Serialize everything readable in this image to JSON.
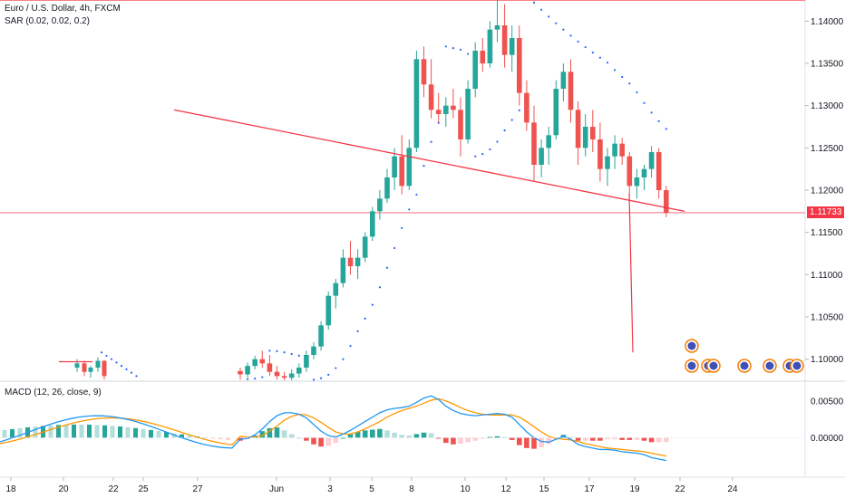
{
  "header": {
    "symbol_title": "Euro / U.S. Dollar, 4h, FXCM",
    "indicator_sar": "SAR (0.02, 0.02, 0.2)",
    "indicator_macd": "MACD (12, 26, close, 9)"
  },
  "current_price_label": "1.11733",
  "colors": {
    "up": "#26a69a",
    "down": "#ef5350",
    "sar": "#2962ff",
    "macd": "#2196f3",
    "signal": "#ff9800",
    "hist_up_strong": "#26a69a",
    "hist_up_weak": "#b2dfdb",
    "hist_down_strong": "#ef5350",
    "hist_down_weak": "#ffcdd2",
    "trendline": "#f23645"
  },
  "chart_data": [
    {
      "type": "candlestick",
      "title": "Euro / U.S. Dollar, 4h, FXCM",
      "x_tick_labels": [
        "18",
        "20",
        "22",
        "25",
        "27",
        "Jun",
        "3",
        "5",
        "8",
        "10",
        "12",
        "15",
        "17",
        "19",
        "22",
        "24"
      ],
      "y_tick_labels": [
        "1.14000",
        "1.13500",
        "1.13000",
        "1.12500",
        "1.12000",
        "1.11500",
        "1.11000",
        "1.10500",
        "1.10000"
      ],
      "ylim": [
        1.0975,
        1.1425
      ],
      "last_price": 1.11733,
      "key_levels": [
        1.11733,
        1.1425
      ],
      "neckline": {
        "from": [
          2,
          1.1295
        ],
        "to": [
          39,
          1.1175
        ]
      },
      "projection_line": {
        "x": 36,
        "from": 1.1196,
        "to": 1.1008
      },
      "sar": {
        "label": "SAR (0.02, 0.02, 0.2)"
      },
      "candles": [
        [
          1.0986,
          1.099,
          1.0976,
          1.0982
        ],
        [
          1.0982,
          1.0996,
          1.0978,
          1.0992
        ],
        [
          1.0992,
          1.1004,
          1.0988,
          1.1
        ],
        [
          1.1,
          1.101,
          1.099,
          1.0995
        ],
        [
          1.0995,
          1.1005,
          1.098,
          1.0985
        ],
        [
          1.0985,
          1.0992,
          1.0976,
          1.098
        ],
        [
          1.098,
          1.0985,
          1.0975,
          1.0978
        ],
        [
          1.0978,
          1.0988,
          1.0975,
          1.0983
        ],
        [
          1.0983,
          1.0995,
          1.0978,
          1.099
        ],
        [
          1.099,
          1.101,
          1.0985,
          1.1005
        ],
        [
          1.1005,
          1.102,
          1.1,
          1.1015
        ],
        [
          1.1015,
          1.1045,
          1.101,
          1.104
        ],
        [
          1.104,
          1.108,
          1.1035,
          1.1075
        ],
        [
          1.1075,
          1.1095,
          1.106,
          1.109
        ],
        [
          1.109,
          1.113,
          1.1085,
          1.112
        ],
        [
          1.112,
          1.114,
          1.11,
          1.111
        ],
        [
          1.111,
          1.113,
          1.1095,
          1.112
        ],
        [
          1.112,
          1.115,
          1.1115,
          1.1145
        ],
        [
          1.1145,
          1.118,
          1.114,
          1.1175
        ],
        [
          1.1175,
          1.12,
          1.1165,
          1.119
        ],
        [
          1.119,
          1.1225,
          1.1185,
          1.1215
        ],
        [
          1.1215,
          1.125,
          1.12,
          1.124
        ],
        [
          1.124,
          1.1265,
          1.1195,
          1.1205
        ],
        [
          1.1205,
          1.126,
          1.12,
          1.125
        ],
        [
          1.125,
          1.1365,
          1.1245,
          1.1355
        ],
        [
          1.1355,
          1.137,
          1.131,
          1.1325
        ],
        [
          1.1325,
          1.1355,
          1.1285,
          1.1295
        ],
        [
          1.1295,
          1.1315,
          1.128,
          1.129
        ],
        [
          1.129,
          1.131,
          1.1275,
          1.13
        ],
        [
          1.13,
          1.132,
          1.1285,
          1.1295
        ],
        [
          1.1295,
          1.131,
          1.124,
          1.126
        ],
        [
          1.126,
          1.133,
          1.1255,
          1.132
        ],
        [
          1.132,
          1.1375,
          1.131,
          1.1365
        ],
        [
          1.1365,
          1.138,
          1.134,
          1.135
        ],
        [
          1.135,
          1.14,
          1.1345,
          1.139
        ],
        [
          1.139,
          1.1425,
          1.1375,
          1.1395
        ],
        [
          1.1395,
          1.142,
          1.1345,
          1.136
        ],
        [
          1.136,
          1.1395,
          1.134,
          1.138
        ],
        [
          1.138,
          1.1395,
          1.13,
          1.1315
        ],
        [
          1.1315,
          1.133,
          1.127,
          1.128
        ],
        [
          1.128,
          1.13,
          1.121,
          1.123
        ],
        [
          1.123,
          1.126,
          1.1215,
          1.125
        ],
        [
          1.125,
          1.1275,
          1.123,
          1.1265
        ],
        [
          1.1265,
          1.133,
          1.126,
          1.132
        ],
        [
          1.132,
          1.135,
          1.1305,
          1.134
        ],
        [
          1.134,
          1.1355,
          1.128,
          1.1295
        ],
        [
          1.1295,
          1.1305,
          1.123,
          1.125
        ],
        [
          1.125,
          1.129,
          1.124,
          1.1275
        ],
        [
          1.1275,
          1.1295,
          1.1245,
          1.126
        ],
        [
          1.126,
          1.128,
          1.121,
          1.1225
        ],
        [
          1.1225,
          1.125,
          1.1205,
          1.124
        ],
        [
          1.124,
          1.1265,
          1.1225,
          1.1255
        ],
        [
          1.1255,
          1.1262,
          1.123,
          1.124
        ],
        [
          1.124,
          1.1245,
          1.1195,
          1.1205
        ],
        [
          1.1205,
          1.1225,
          1.119,
          1.1215
        ],
        [
          1.1215,
          1.123,
          1.12,
          1.1225
        ],
        [
          1.1225,
          1.1252,
          1.1215,
          1.1245
        ],
        [
          1.1245,
          1.125,
          1.119,
          1.12
        ],
        [
          1.12,
          1.1205,
          1.1168,
          1.1173
        ]
      ]
    },
    {
      "type": "bar",
      "title": "MACD (12, 26, close, 9)",
      "y_tick_labels": [
        "0.00500",
        "0.00000"
      ],
      "ylim": [
        -0.0045,
        0.0072
      ],
      "macd_line": [
        -0.0002,
        -0.0001,
        0.0004,
        0.0012,
        0.0022,
        0.003,
        0.0034,
        0.0034,
        0.0032,
        0.0027,
        0.0018,
        0.0009,
        0.0003,
        0.0001,
        0.0005,
        0.001,
        0.0016,
        0.0022,
        0.0028,
        0.0034,
        0.0038,
        0.004,
        0.0041,
        0.0043,
        0.0048,
        0.0054,
        0.0057,
        0.0052,
        0.0043,
        0.0037,
        0.0033,
        0.0031,
        0.003,
        0.0031,
        0.0032,
        0.0033,
        0.0032,
        0.0028,
        0.0018,
        0.0008,
        0.0,
        -0.0005,
        -0.0006,
        -0.0002,
        0.0002,
        -0.0002,
        -0.0009,
        -0.0012,
        -0.0014,
        -0.0016,
        -0.0016,
        -0.0017,
        -0.0019,
        -0.002,
        -0.0021,
        -0.0023,
        -0.0027,
        -0.0029,
        -0.0031
      ],
      "signal_line": [
        0.0002,
        0.0001,
        0.0001,
        0.0003,
        0.0009,
        0.0016,
        0.0024,
        0.0029,
        0.0032,
        0.0031,
        0.0027,
        0.0021,
        0.0014,
        0.0008,
        0.0005,
        0.0005,
        0.0008,
        0.0012,
        0.0017,
        0.0022,
        0.0028,
        0.0033,
        0.0037,
        0.004,
        0.0043,
        0.0047,
        0.0051,
        0.0053,
        0.005,
        0.0046,
        0.0041,
        0.0037,
        0.0034,
        0.0032,
        0.0031,
        0.0031,
        0.0031,
        0.0031,
        0.0028,
        0.0022,
        0.0015,
        0.0008,
        0.0002,
        -0.0001,
        -0.0002,
        -0.0003,
        -0.0005,
        -0.0008,
        -0.001,
        -0.0012,
        -0.0014,
        -0.0015,
        -0.0016,
        -0.0017,
        -0.0018,
        -0.0019,
        -0.0021,
        -0.0023,
        -0.0025
      ]
    }
  ]
}
